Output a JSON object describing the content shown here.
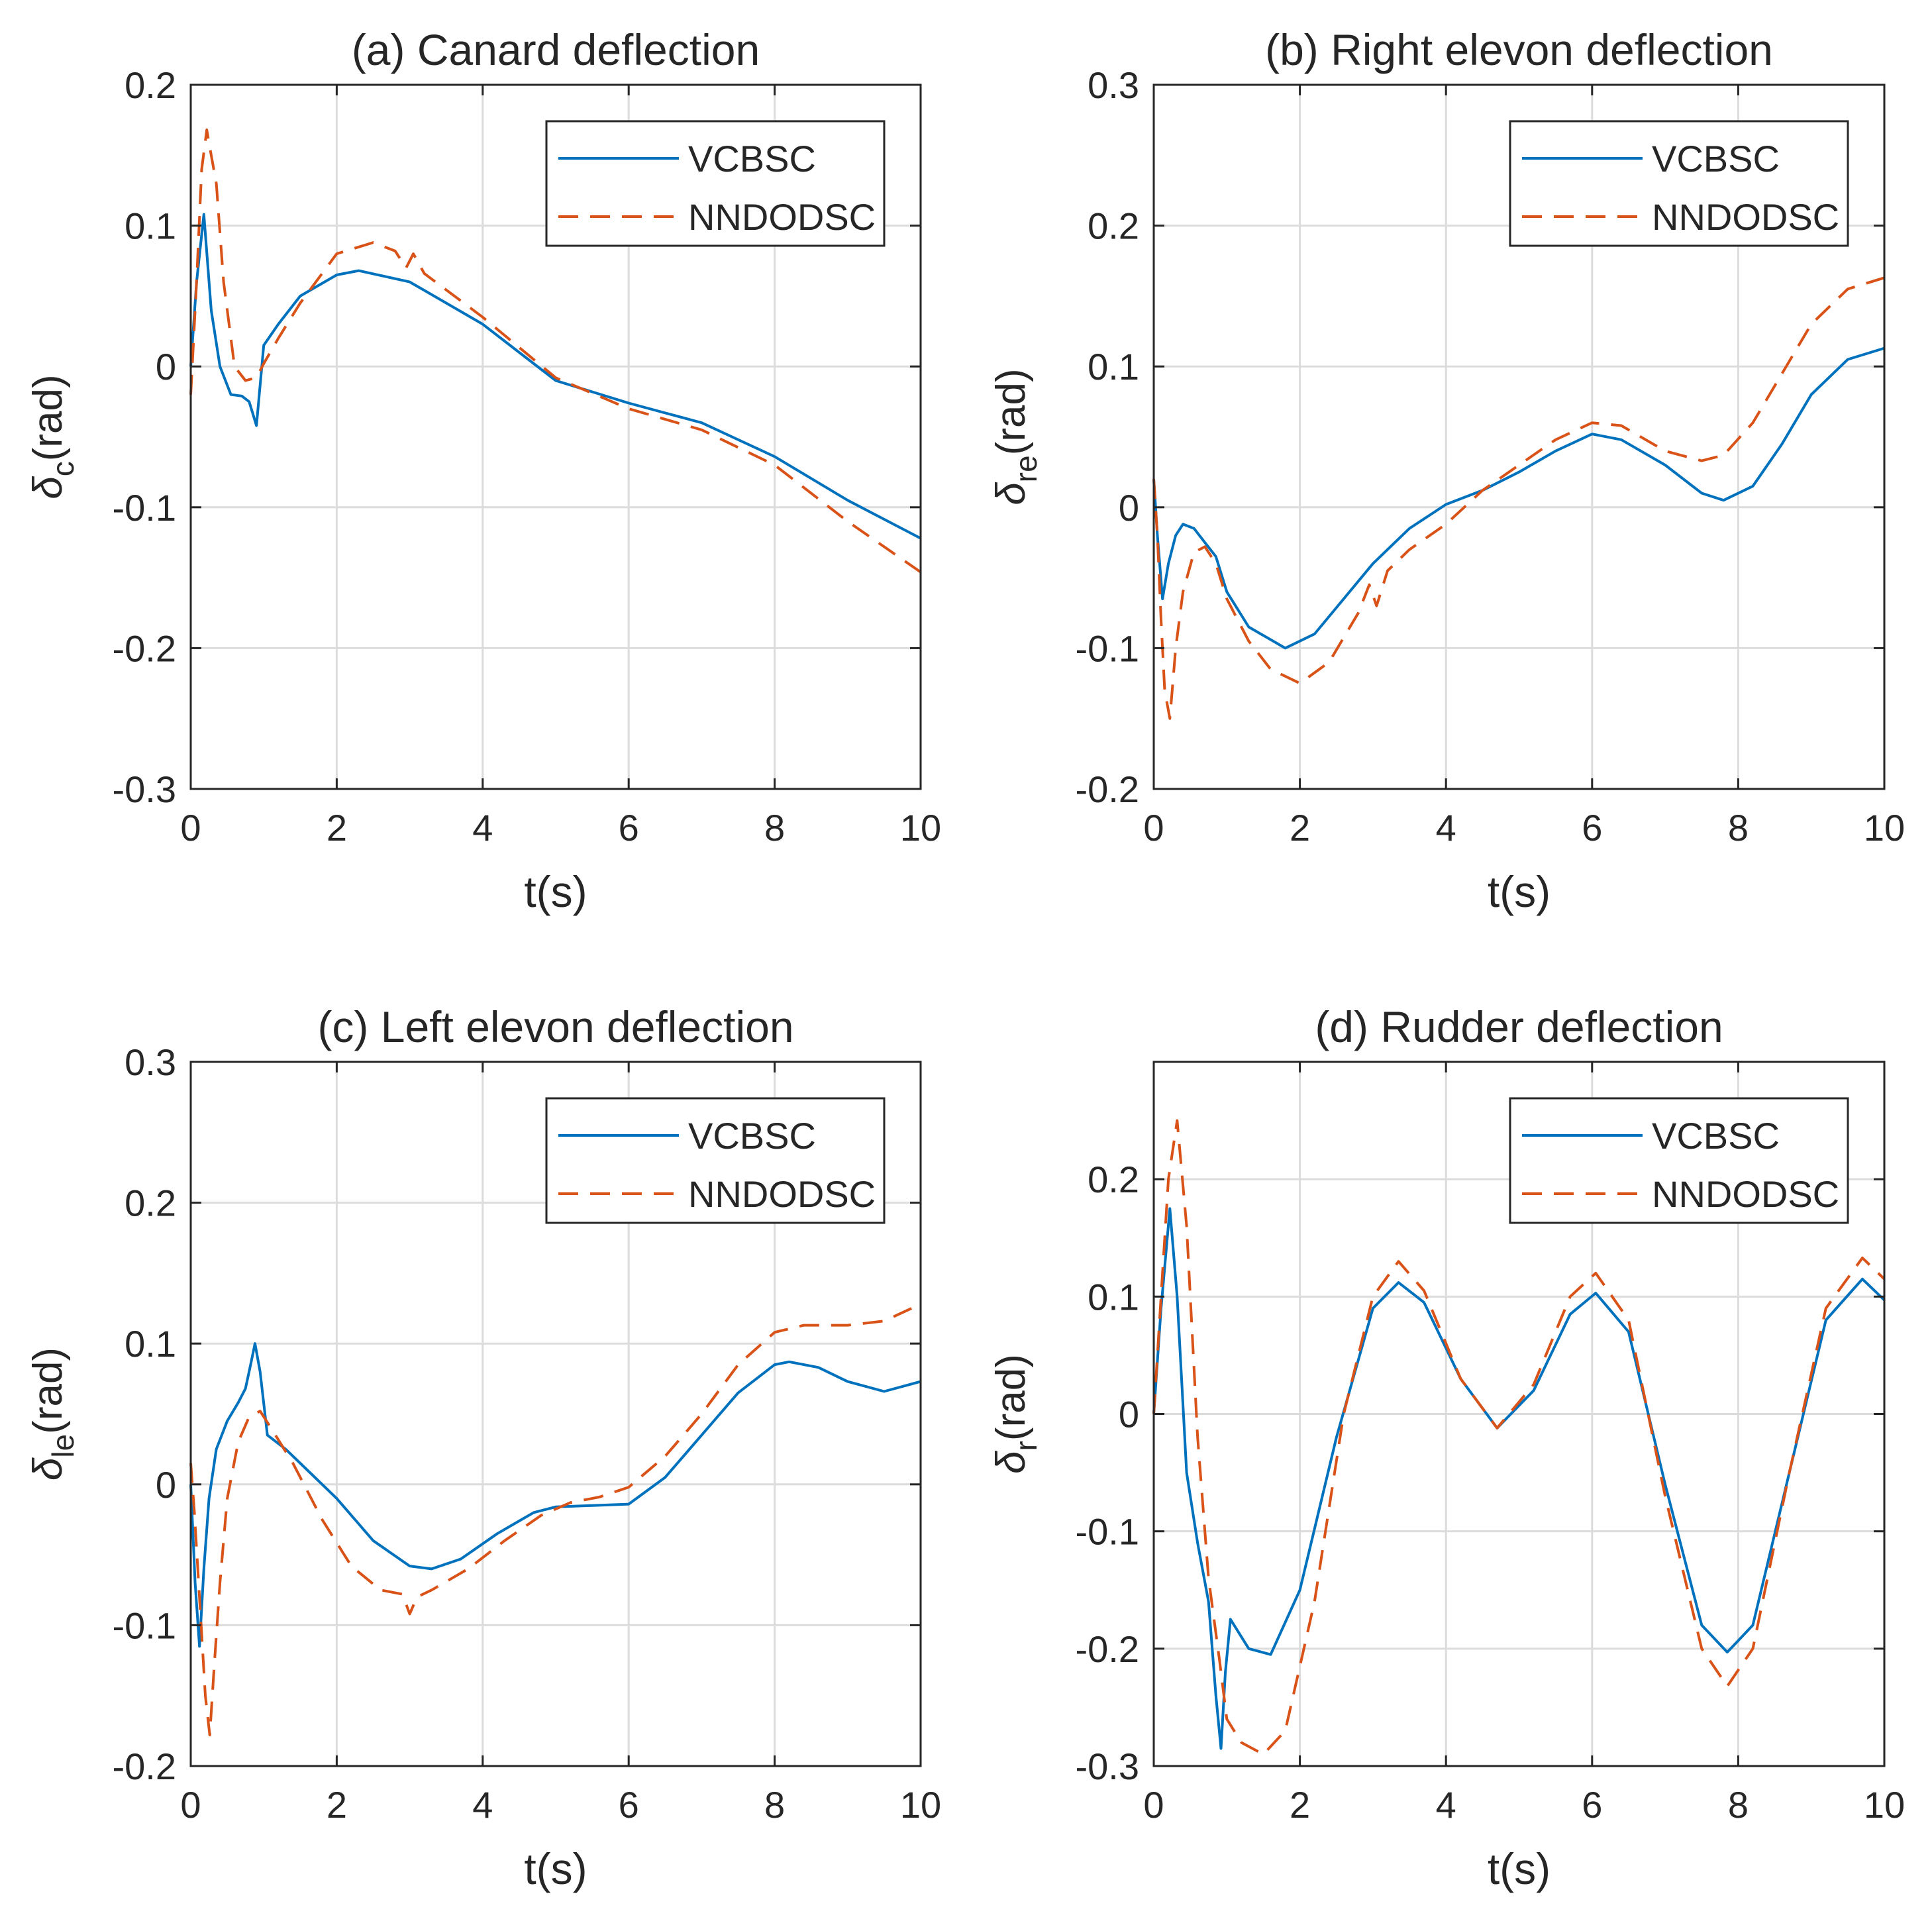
{
  "chart_data": [
    {
      "type": "line",
      "title": "(a) Canard deflection",
      "xlabel": "t(s)",
      "ylabel_symbol": "δ",
      "ylabel_sub": "c",
      "ylabel_unit": "(rad)",
      "xlim": [
        0,
        10
      ],
      "ylim": [
        -0.3,
        0.2
      ],
      "xticks": [
        0,
        2,
        4,
        6,
        8,
        10
      ],
      "xtick_labels": [
        "0",
        "2",
        "4",
        "6",
        "8",
        "10"
      ],
      "yticks": [
        -0.3,
        -0.2,
        -0.1,
        0,
        0.1,
        0.2
      ],
      "ytick_labels": [
        "-0.3",
        "-0.2",
        "-0.1",
        "0",
        "0.1",
        "0.2"
      ],
      "legend_position": "top-right",
      "series": [
        {
          "name": "VCBSC",
          "color": "#0072BD",
          "dash": "solid",
          "x": [
            0,
            0.08,
            0.18,
            0.28,
            0.4,
            0.55,
            0.7,
            0.8,
            0.9,
            1.0,
            1.2,
            1.5,
            2.0,
            2.3,
            3.0,
            4.0,
            5.0,
            6.0,
            7.0,
            8.0,
            9.0,
            10.0
          ],
          "y": [
            0.0,
            0.06,
            0.108,
            0.04,
            0.0,
            -0.02,
            -0.021,
            -0.025,
            -0.042,
            0.015,
            0.03,
            0.05,
            0.065,
            0.068,
            0.06,
            0.03,
            -0.01,
            -0.026,
            -0.04,
            -0.064,
            -0.095,
            -0.122
          ]
        },
        {
          "name": "NNDODSC",
          "color": "#D95319",
          "dash": "dashed",
          "x": [
            0,
            0.08,
            0.15,
            0.22,
            0.28,
            0.35,
            0.45,
            0.6,
            0.75,
            0.9,
            1.0,
            1.2,
            1.5,
            2.0,
            2.5,
            2.8,
            2.95,
            3.05,
            3.2,
            4.0,
            5.0,
            6.0,
            7.0,
            8.0,
            9.0,
            10.0
          ],
          "y": [
            -0.02,
            0.06,
            0.14,
            0.168,
            0.15,
            0.13,
            0.06,
            0.0,
            -0.01,
            -0.008,
            0.002,
            0.02,
            0.045,
            0.08,
            0.088,
            0.082,
            0.07,
            0.08,
            0.066,
            0.035,
            -0.008,
            -0.03,
            -0.045,
            -0.07,
            -0.11,
            -0.146
          ]
        }
      ]
    },
    {
      "type": "line",
      "title": "(b) Right elevon deflection",
      "xlabel": "t(s)",
      "ylabel_symbol": "δ",
      "ylabel_sub": "re",
      "ylabel_unit": "(rad)",
      "xlim": [
        0,
        10
      ],
      "ylim": [
        -0.2,
        0.3
      ],
      "xticks": [
        0,
        2,
        4,
        6,
        8,
        10
      ],
      "xtick_labels": [
        "0",
        "2",
        "4",
        "6",
        "8",
        "10"
      ],
      "yticks": [
        -0.2,
        -0.1,
        0,
        0.1,
        0.2,
        0.3
      ],
      "ytick_labels": [
        "-0.2",
        "-0.1",
        "0",
        "0.1",
        "0.2",
        "0.3"
      ],
      "legend_position": "top-right",
      "series": [
        {
          "name": "VCBSC",
          "color": "#0072BD",
          "dash": "solid",
          "x": [
            0,
            0.05,
            0.12,
            0.2,
            0.3,
            0.4,
            0.55,
            0.7,
            0.85,
            1.0,
            1.3,
            1.8,
            2.2,
            2.6,
            3.0,
            3.5,
            4.0,
            4.5,
            5.0,
            5.5,
            6.0,
            6.4,
            7.0,
            7.5,
            7.8,
            8.2,
            8.6,
            9.0,
            9.5,
            10.0
          ],
          "y": [
            0.02,
            -0.02,
            -0.065,
            -0.04,
            -0.02,
            -0.012,
            -0.015,
            -0.025,
            -0.035,
            -0.06,
            -0.085,
            -0.1,
            -0.09,
            -0.065,
            -0.04,
            -0.015,
            0.002,
            0.012,
            0.025,
            0.04,
            0.052,
            0.048,
            0.03,
            0.01,
            0.005,
            0.015,
            0.045,
            0.08,
            0.105,
            0.113
          ]
        },
        {
          "name": "NNDODSC",
          "color": "#D95319",
          "dash": "dashed",
          "x": [
            0,
            0.05,
            0.1,
            0.15,
            0.22,
            0.3,
            0.4,
            0.55,
            0.7,
            0.85,
            1.0,
            1.3,
            1.6,
            2.0,
            2.4,
            2.8,
            2.95,
            3.05,
            3.2,
            3.5,
            4.0,
            4.5,
            5.0,
            5.5,
            6.0,
            6.4,
            7.0,
            7.5,
            7.8,
            8.2,
            8.6,
            9.0,
            9.5,
            10.0
          ],
          "y": [
            0.02,
            -0.02,
            -0.08,
            -0.13,
            -0.15,
            -0.1,
            -0.06,
            -0.032,
            -0.028,
            -0.04,
            -0.065,
            -0.095,
            -0.115,
            -0.125,
            -0.11,
            -0.075,
            -0.055,
            -0.07,
            -0.045,
            -0.03,
            -0.012,
            0.012,
            0.03,
            0.048,
            0.06,
            0.058,
            0.04,
            0.033,
            0.037,
            0.06,
            0.095,
            0.13,
            0.155,
            0.163
          ]
        }
      ]
    },
    {
      "type": "line",
      "title": "(c) Left elevon deflection",
      "xlabel": "t(s)",
      "ylabel_symbol": "δ",
      "ylabel_sub": "le",
      "ylabel_unit": "(rad)",
      "xlim": [
        0,
        10
      ],
      "ylim": [
        -0.2,
        0.3
      ],
      "xticks": [
        0,
        2,
        4,
        6,
        8,
        10
      ],
      "xtick_labels": [
        "0",
        "2",
        "4",
        "6",
        "8",
        "10"
      ],
      "yticks": [
        -0.2,
        -0.1,
        0,
        0.1,
        0.2,
        0.3
      ],
      "ytick_labels": [
        "-0.2",
        "-0.1",
        "0",
        "0.1",
        "0.2",
        "0.3"
      ],
      "legend_position": "top-right",
      "series": [
        {
          "name": "VCBSC",
          "color": "#0072BD",
          "dash": "solid",
          "x": [
            0,
            0.06,
            0.12,
            0.18,
            0.25,
            0.35,
            0.5,
            0.65,
            0.75,
            0.82,
            0.88,
            0.95,
            1.05,
            1.3,
            1.6,
            2.0,
            2.5,
            3.0,
            3.3,
            3.7,
            4.2,
            4.7,
            5.0,
            5.5,
            6.0,
            6.5,
            7.0,
            7.5,
            8.0,
            8.2,
            8.6,
            9.0,
            9.5,
            10.0
          ],
          "y": [
            0.0,
            -0.07,
            -0.115,
            -0.06,
            -0.01,
            0.025,
            0.045,
            0.058,
            0.068,
            0.085,
            0.1,
            0.08,
            0.035,
            0.025,
            0.01,
            -0.01,
            -0.04,
            -0.058,
            -0.06,
            -0.053,
            -0.035,
            -0.02,
            -0.016,
            -0.015,
            -0.014,
            0.005,
            0.035,
            0.065,
            0.085,
            0.087,
            0.083,
            0.073,
            0.066,
            0.073
          ]
        },
        {
          "name": "NNDODSC",
          "color": "#D95319",
          "dash": "dashed",
          "x": [
            0,
            0.05,
            0.12,
            0.2,
            0.26,
            0.32,
            0.4,
            0.5,
            0.65,
            0.8,
            0.95,
            1.1,
            1.4,
            1.8,
            2.2,
            2.6,
            2.9,
            3.0,
            3.1,
            3.3,
            3.8,
            4.3,
            4.8,
            5.2,
            5.6,
            6.0,
            6.5,
            7.0,
            7.5,
            8.0,
            8.4,
            9.0,
            9.5,
            10.0
          ],
          "y": [
            0.015,
            -0.02,
            -0.08,
            -0.15,
            -0.178,
            -0.13,
            -0.07,
            -0.01,
            0.03,
            0.048,
            0.052,
            0.04,
            0.015,
            -0.025,
            -0.058,
            -0.075,
            -0.078,
            -0.092,
            -0.08,
            -0.075,
            -0.06,
            -0.04,
            -0.022,
            -0.013,
            -0.009,
            -0.002,
            0.02,
            0.05,
            0.085,
            0.108,
            0.113,
            0.113,
            0.116,
            0.128
          ]
        }
      ]
    },
    {
      "type": "line",
      "title": "(d) Rudder deflection",
      "xlabel": "t(s)",
      "ylabel_symbol": "δ",
      "ylabel_sub": "r",
      "ylabel_unit": "(rad)",
      "xlim": [
        0,
        10
      ],
      "ylim": [
        -0.3,
        0.3
      ],
      "xticks": [
        0,
        2,
        4,
        6,
        8,
        10
      ],
      "xtick_labels": [
        "0",
        "2",
        "4",
        "6",
        "8",
        "10"
      ],
      "yticks": [
        -0.3,
        -0.2,
        -0.1,
        0,
        0.1,
        0.2
      ],
      "ytick_labels": [
        "-0.3",
        "-0.2",
        "-0.1",
        "0",
        "0.1",
        "0.2"
      ],
      "legend_position": "top-right",
      "series": [
        {
          "name": "VCBSC",
          "color": "#0072BD",
          "dash": "solid",
          "x": [
            0,
            0.1,
            0.22,
            0.32,
            0.45,
            0.6,
            0.75,
            0.85,
            0.92,
            0.98,
            1.05,
            1.3,
            1.6,
            2.0,
            2.5,
            3.0,
            3.35,
            3.7,
            4.2,
            4.7,
            5.2,
            5.7,
            6.05,
            6.5,
            7.0,
            7.5,
            7.85,
            8.2,
            8.7,
            9.2,
            9.7,
            10.0
          ],
          "y": [
            0.0,
            0.09,
            0.175,
            0.1,
            -0.05,
            -0.11,
            -0.16,
            -0.24,
            -0.285,
            -0.22,
            -0.175,
            -0.2,
            -0.205,
            -0.15,
            -0.02,
            0.09,
            0.112,
            0.095,
            0.03,
            -0.012,
            0.02,
            0.085,
            0.103,
            0.07,
            -0.06,
            -0.18,
            -0.203,
            -0.18,
            -0.05,
            0.08,
            0.115,
            0.097
          ]
        },
        {
          "name": "NNDODSC",
          "color": "#D95319",
          "dash": "dashed",
          "x": [
            0,
            0.1,
            0.2,
            0.32,
            0.45,
            0.6,
            0.75,
            0.9,
            1.0,
            1.2,
            1.5,
            1.8,
            2.2,
            2.6,
            3.0,
            3.35,
            3.7,
            4.2,
            4.7,
            5.2,
            5.7,
            6.05,
            6.5,
            7.0,
            7.5,
            7.85,
            8.2,
            8.7,
            9.2,
            9.7,
            10.0
          ],
          "y": [
            0.0,
            0.1,
            0.2,
            0.25,
            0.16,
            -0.02,
            -0.14,
            -0.21,
            -0.26,
            -0.28,
            -0.29,
            -0.27,
            -0.16,
            0.0,
            0.1,
            0.13,
            0.105,
            0.03,
            -0.012,
            0.025,
            0.1,
            0.12,
            0.08,
            -0.07,
            -0.2,
            -0.232,
            -0.2,
            -0.05,
            0.09,
            0.133,
            0.115
          ]
        }
      ]
    }
  ]
}
